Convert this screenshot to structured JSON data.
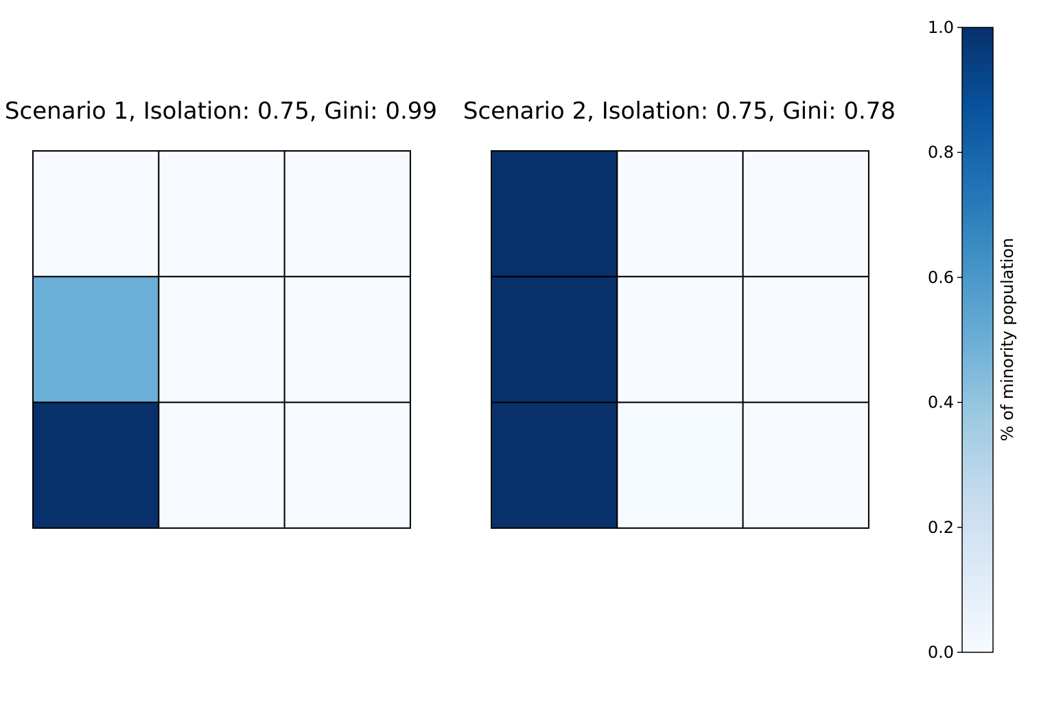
{
  "chart_data": {
    "type": "heatmap",
    "colormap": "Blues",
    "vmin": 0.0,
    "vmax": 1.0,
    "panels": [
      {
        "title": "Scenario 1, Isolation: 0.75, Gini: 0.99",
        "grid": [
          [
            0.0,
            0.0,
            0.0
          ],
          [
            0.5,
            0.0,
            0.0
          ],
          [
            1.0,
            0.0,
            0.0
          ]
        ]
      },
      {
        "title": "Scenario 2, Isolation: 0.75, Gini: 0.78",
        "grid": [
          [
            1.0,
            0.0,
            0.0
          ],
          [
            1.0,
            0.0,
            0.0
          ],
          [
            1.0,
            0.01,
            0.0
          ]
        ]
      }
    ],
    "colorbar": {
      "label": "% of minority population",
      "ticks": [
        "0.0",
        "0.2",
        "0.4",
        "0.6",
        "0.8",
        "1.0"
      ],
      "tick_values": [
        0.0,
        0.2,
        0.4,
        0.6,
        0.8,
        1.0
      ]
    },
    "cell_edge_color": "#000000"
  }
}
